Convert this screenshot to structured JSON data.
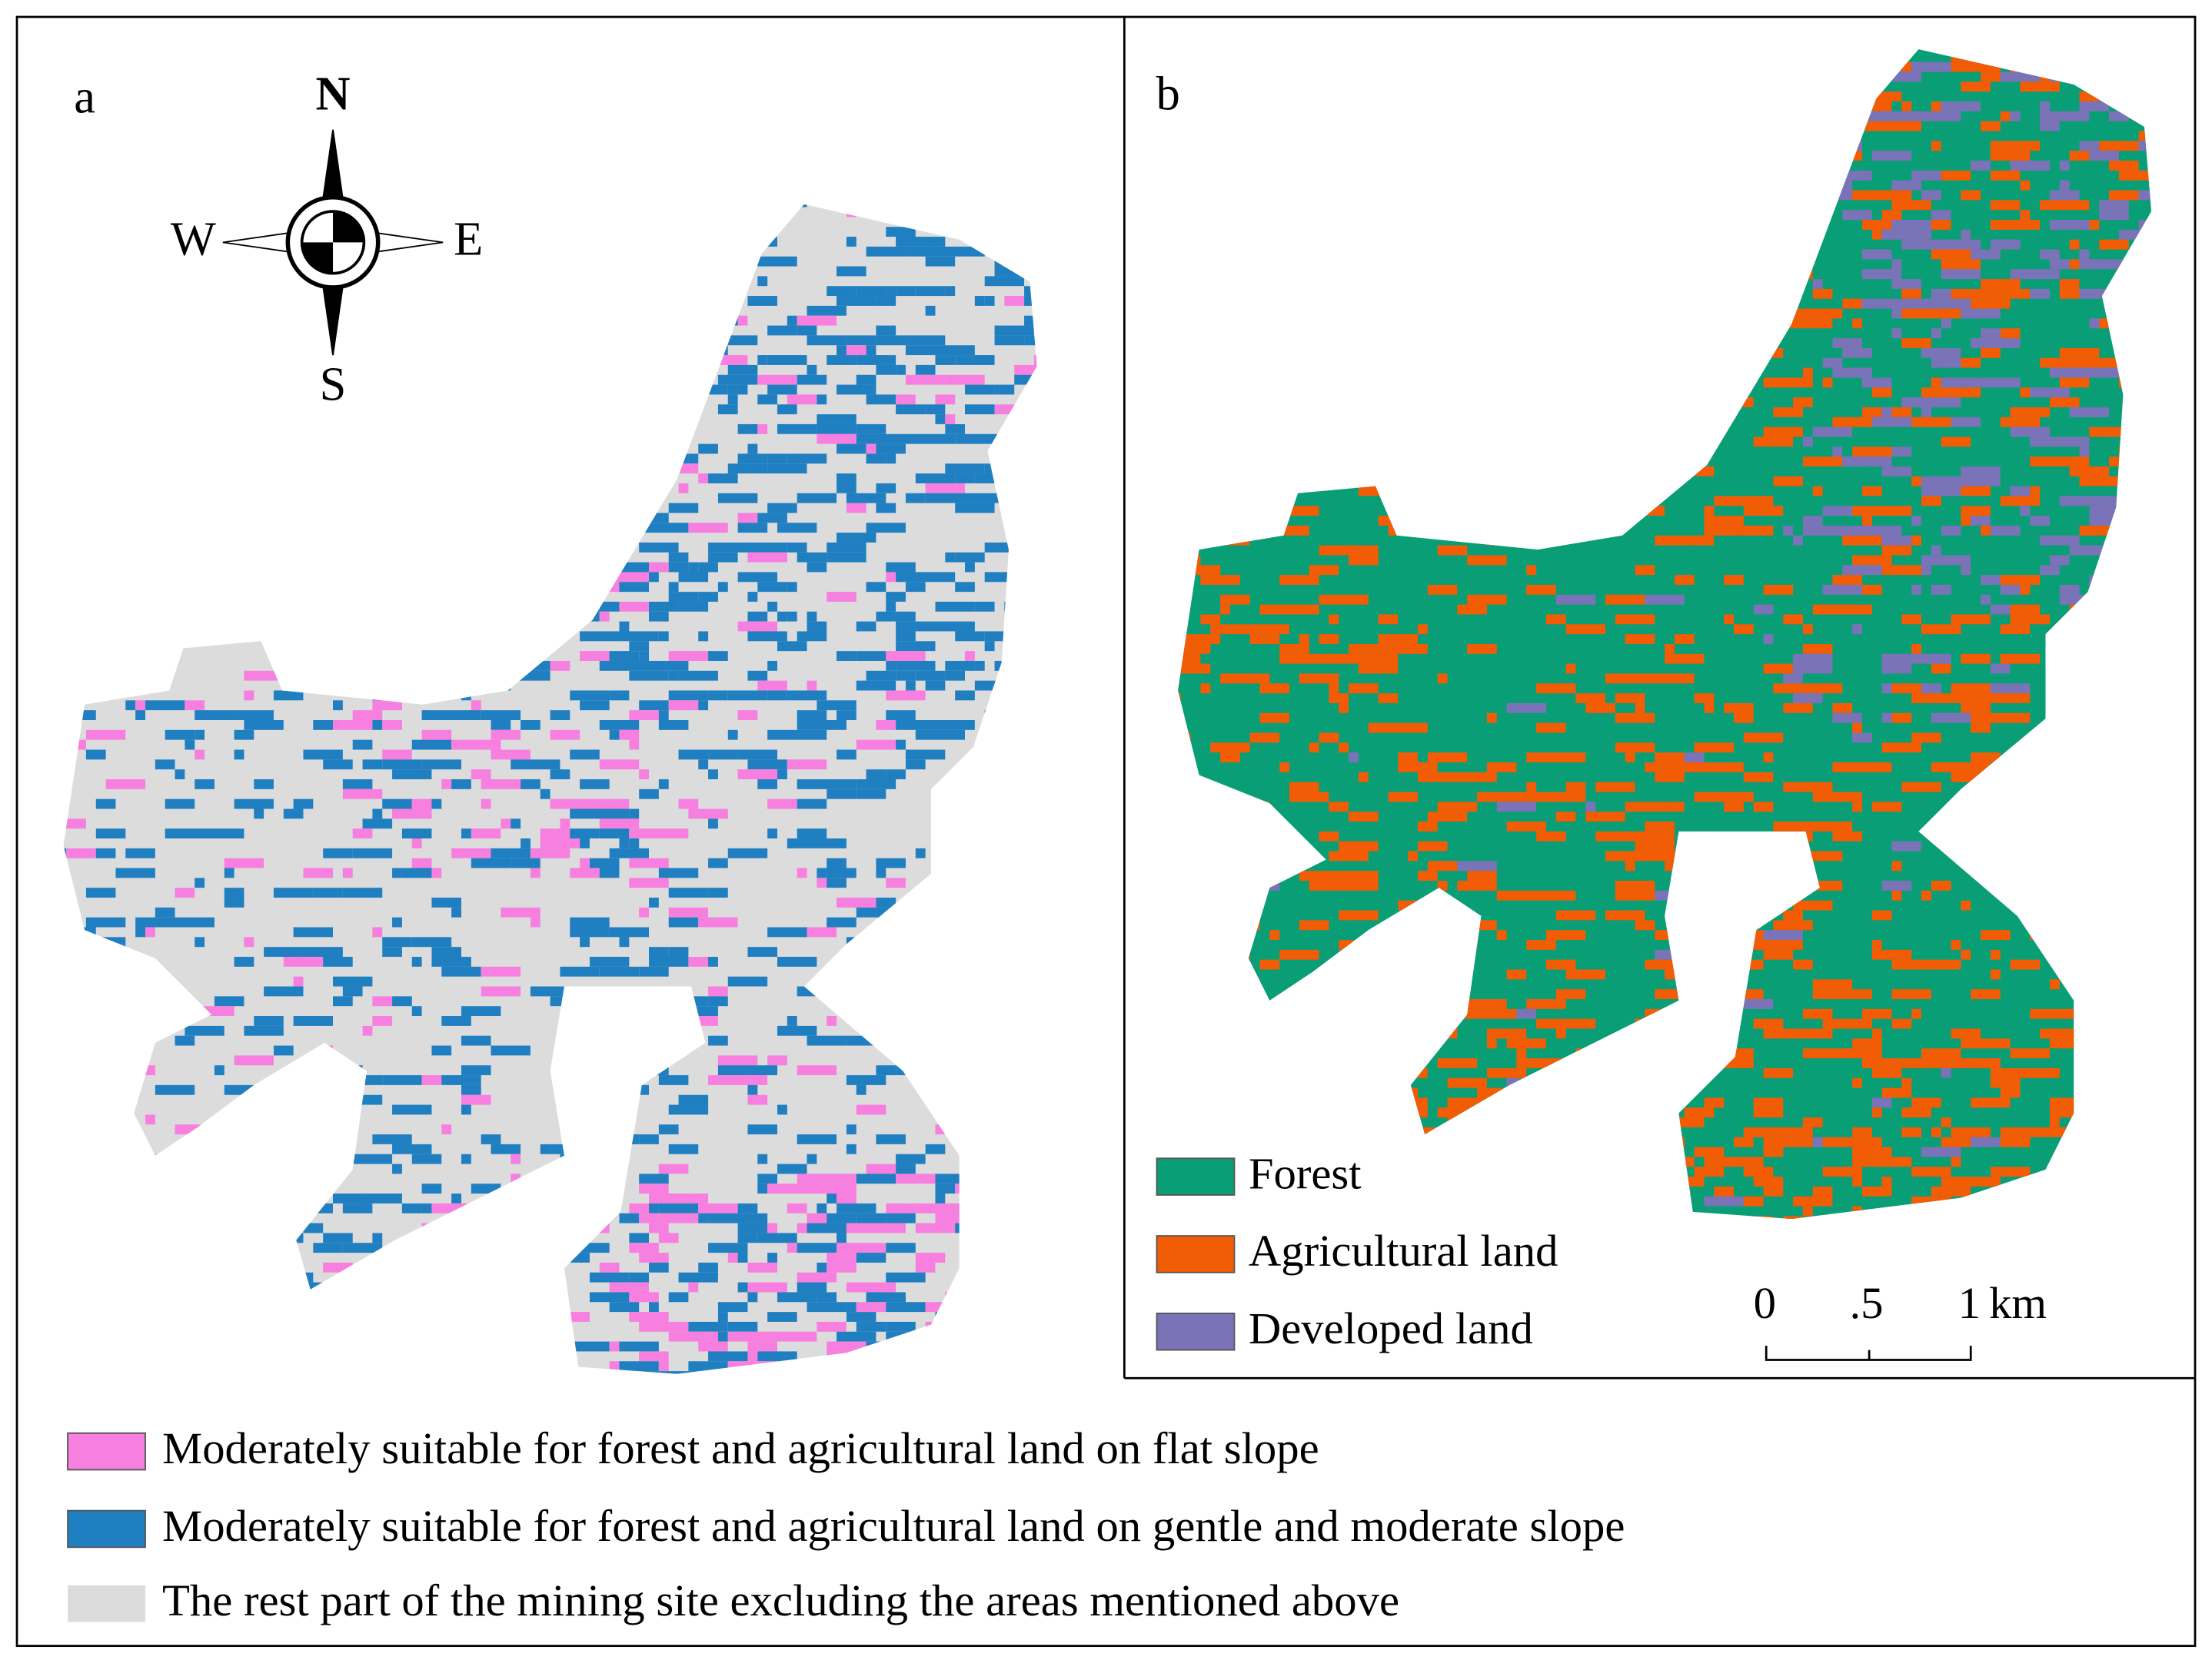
{
  "panel_a": {
    "label": "a",
    "compass": {
      "north": "N",
      "south": "S",
      "east": "E",
      "west": "W"
    },
    "legend": [
      "Moderately suitable for forest and agricultural land on flat slope",
      "Moderately suitable for forest and agricultural land on gentle and moderate slope",
      "The rest part of the mining site excluding the areas mentioned above"
    ]
  },
  "panel_b": {
    "label": "b",
    "legend": [
      "Forest",
      "Agricultural land",
      "Developed land"
    ],
    "scale_bar": {
      "ticks": [
        "0",
        ".5",
        "1"
      ],
      "unit": "km"
    }
  }
}
